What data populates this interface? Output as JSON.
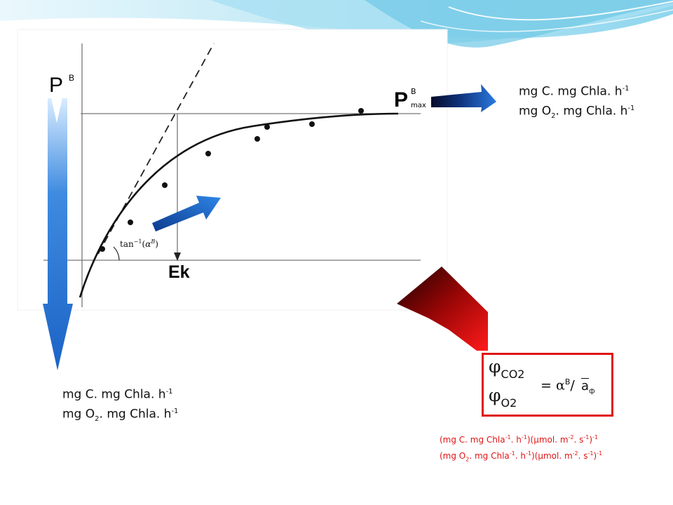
{
  "graph": {
    "y_axis_label": "P",
    "y_axis_sup": "B",
    "pmax_label": "P",
    "pmax_sup": "B",
    "pmax_sub": "max",
    "ek_label": "Ek",
    "tan_label": "tan",
    "tan_exp": "−1",
    "tan_arg_open": "(",
    "tan_alpha": "α",
    "tan_alpha_sup": "B",
    "tan_arg_close": ")"
  },
  "units_right": {
    "line1_text": "mg C. mg Chla. h",
    "line1_sup": "-1",
    "line2_pre": "mg O",
    "line2_sub": "2",
    "line2_post": ". mg Chla. h",
    "line2_sup": "-1"
  },
  "units_bottom": {
    "line1_text": "mg C. mg Chla. h",
    "line1_sup": "-1",
    "line2_pre": "mg O",
    "line2_sub": "2",
    "line2_post": ". mg Chla. h",
    "line2_sup": "-1"
  },
  "formula": {
    "phi1": "φ",
    "phi1_sub": "CO2",
    "phi2": "φ",
    "phi2_sub": "O2",
    "equals": "=",
    "alpha": "α",
    "alpha_sup": "B",
    "slash": "/",
    "abar": "a",
    "abar_sub": "ф"
  },
  "red_units": {
    "l1_a": "(mg C. mg Chla",
    "l1_a_sup": "-1",
    "l1_b": ". h",
    "l1_b_sup": "-1",
    "l1_c": ")(",
    "l1_mu": "μ",
    "l1_d": "mol. m",
    "l1_d_sup": "-2",
    "l1_e": ". s",
    "l1_e_sup": "-1",
    "l1_f": ")",
    "l1_f_sup": "-1",
    "l2_a": "(mg O",
    "l2_a_sub": "2",
    "l2_b": ". mg Chla",
    "l2_b_sup": "-1",
    "l2_c": ". h",
    "l2_c_sup": "-1",
    "l2_d": ")(",
    "l2_mu": "μ",
    "l2_e": "mol. m",
    "l2_e_sup": "-2",
    "l2_f": ". s",
    "l2_f_sup": "-1",
    "l2_g": ")",
    "l2_g_sup": "-1"
  },
  "colors": {
    "blue_arrow": "#1b63c6",
    "dark_arrow": "#0a1f55",
    "red_arrow": "#e01414",
    "box_border": "#e01414",
    "wave_light": "#bfe8f5",
    "wave_mid": "#7fd0ec"
  }
}
